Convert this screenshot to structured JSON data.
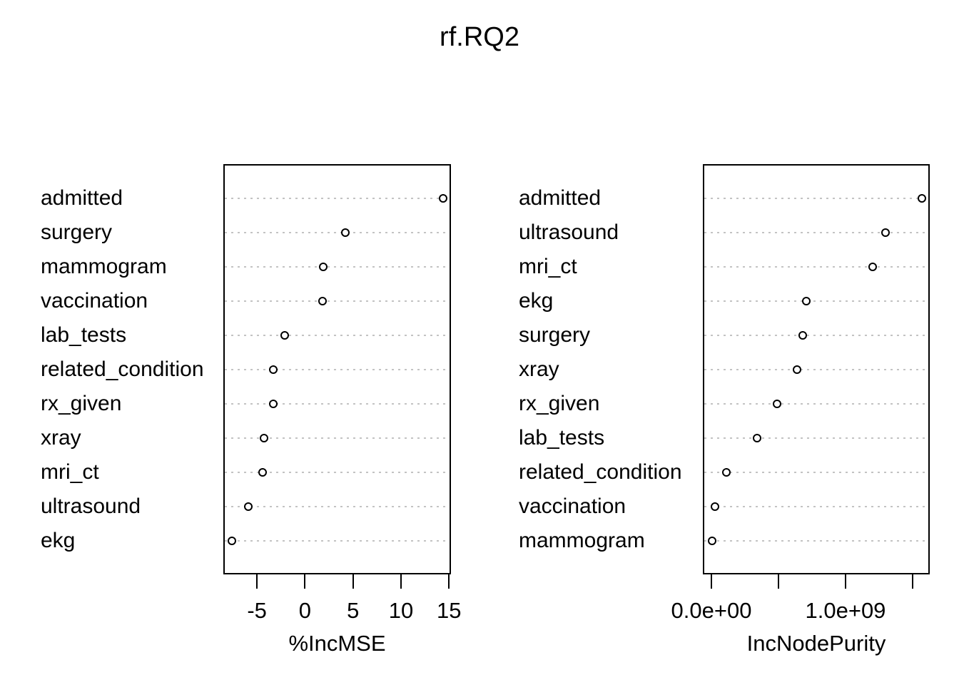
{
  "figure": {
    "title": "rf.RQ2"
  },
  "chart_data": [
    {
      "type": "scatter",
      "panel": "left",
      "title": "rf.RQ2",
      "xlabel": "%IncMSE",
      "ylabel": "",
      "categories": [
        "admitted",
        "surgery",
        "mammogram",
        "vaccination",
        "lab_tests",
        "related_condition",
        "rx_given",
        "xray",
        "mri_ct",
        "ultrasound",
        "ekg"
      ],
      "values": [
        14.4,
        4.2,
        1.9,
        1.85,
        -2.1,
        -3.3,
        -3.3,
        -4.3,
        -4.4,
        -5.9,
        -7.6
      ],
      "xlim": [
        -8.5,
        15.2
      ],
      "xticks": [
        -5,
        0,
        5,
        10,
        15
      ],
      "xtick_labels": [
        "-5",
        "0",
        "5",
        "10",
        "15"
      ],
      "grid": "horizontal-dotted",
      "legend": "none",
      "point_style": "open-circle",
      "colors": {
        "point_stroke": "#000000",
        "point_fill": "#ffffff",
        "grid": "#c3c3c3",
        "border": "#000000",
        "text": "#000000",
        "background": "#ffffff"
      }
    },
    {
      "type": "scatter",
      "panel": "right",
      "title": "rf.RQ2",
      "xlabel": "IncNodePurity",
      "ylabel": "",
      "categories": [
        "admitted",
        "ultrasound",
        "mri_ct",
        "ekg",
        "surgery",
        "xray",
        "rx_given",
        "lab_tests",
        "related_condition",
        "vaccination",
        "mammogram"
      ],
      "values": [
        1570000000.0,
        1300000000.0,
        1200000000.0,
        710000000.0,
        680000000.0,
        640000000.0,
        490000000.0,
        340000000.0,
        110000000.0,
        28000000.0,
        5000000.0
      ],
      "xlim": [
        -64000000.0,
        1628000000.0
      ],
      "xticks": [
        0,
        500000000.0,
        1000000000.0,
        1500000000.0
      ],
      "xtick_labels": [
        "0.0e+00",
        "",
        "1.0e+09",
        ""
      ],
      "grid": "horizontal-dotted",
      "legend": "none",
      "point_style": "open-circle",
      "colors": {
        "point_stroke": "#000000",
        "point_fill": "#ffffff",
        "grid": "#c3c3c3",
        "border": "#000000",
        "text": "#000000",
        "background": "#ffffff"
      }
    }
  ]
}
